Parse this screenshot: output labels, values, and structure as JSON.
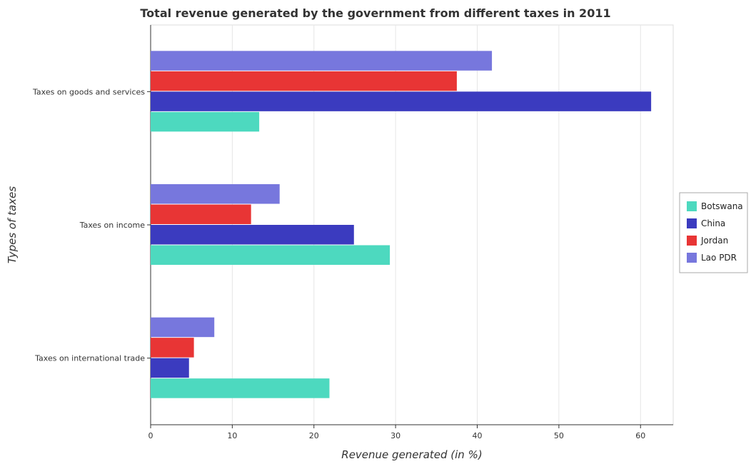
{
  "chart_data": {
    "type": "bar",
    "orientation": "horizontal",
    "title": "Total revenue generated by the government from different taxes in 2011",
    "xlabel": "Revenue generated (in %)",
    "ylabel": "Types of taxes",
    "xlim": [
      0,
      64
    ],
    "xticks": [
      0,
      10,
      20,
      30,
      40,
      50,
      60
    ],
    "grid": true,
    "legend_position": "right",
    "categories": [
      "Taxes on goods and services",
      "Taxes on income",
      "Taxes on international trade"
    ],
    "series": [
      {
        "name": "Botswana",
        "color": "#4dd9bf",
        "values": [
          13.3,
          29.3,
          21.9
        ]
      },
      {
        "name": "China",
        "color": "#3b3bbf",
        "values": [
          61.3,
          24.9,
          4.7
        ]
      },
      {
        "name": "Jordan",
        "color": "#e83535",
        "values": [
          37.5,
          12.3,
          5.3
        ]
      },
      {
        "name": "Lao PDR",
        "color": "#7777dd",
        "values": [
          41.8,
          15.8,
          7.8
        ]
      }
    ]
  }
}
